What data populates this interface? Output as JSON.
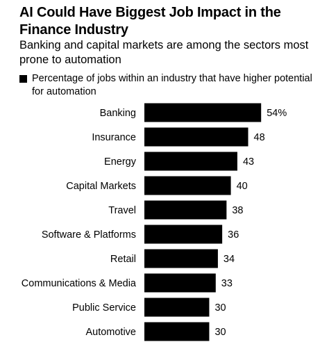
{
  "header": {
    "title": "AI Could Have Biggest Job Impact in the Finance Industry",
    "subtitle": "Banking and capital markets are among the sectors most prone to automation"
  },
  "legend": {
    "label": "Percentage of jobs within an industry that have higher potential for automation",
    "color": "#000000"
  },
  "chart_data": {
    "type": "bar",
    "orientation": "horizontal",
    "title": "AI Could Have Biggest Job Impact in the Finance Industry",
    "subtitle": "Banking and capital markets are among the sectors most prone to automation",
    "categories": [
      "Banking",
      "Insurance",
      "Energy",
      "Capital Markets",
      "Travel",
      "Software & Platforms",
      "Retail",
      "Communications & Media",
      "Public Service",
      "Automotive"
    ],
    "series": [
      {
        "name": "Percentage of jobs within an industry that have higher potential for automation",
        "values": [
          54,
          48,
          43,
          40,
          38,
          36,
          34,
          33,
          30,
          30
        ],
        "labels": [
          "54%",
          "48",
          "43",
          "40",
          "38",
          "36",
          "34",
          "33",
          "30",
          "30"
        ]
      }
    ],
    "xlim": [
      0,
      60
    ],
    "grid": false,
    "legend_position": "top-left",
    "bar_color": "#000000"
  }
}
